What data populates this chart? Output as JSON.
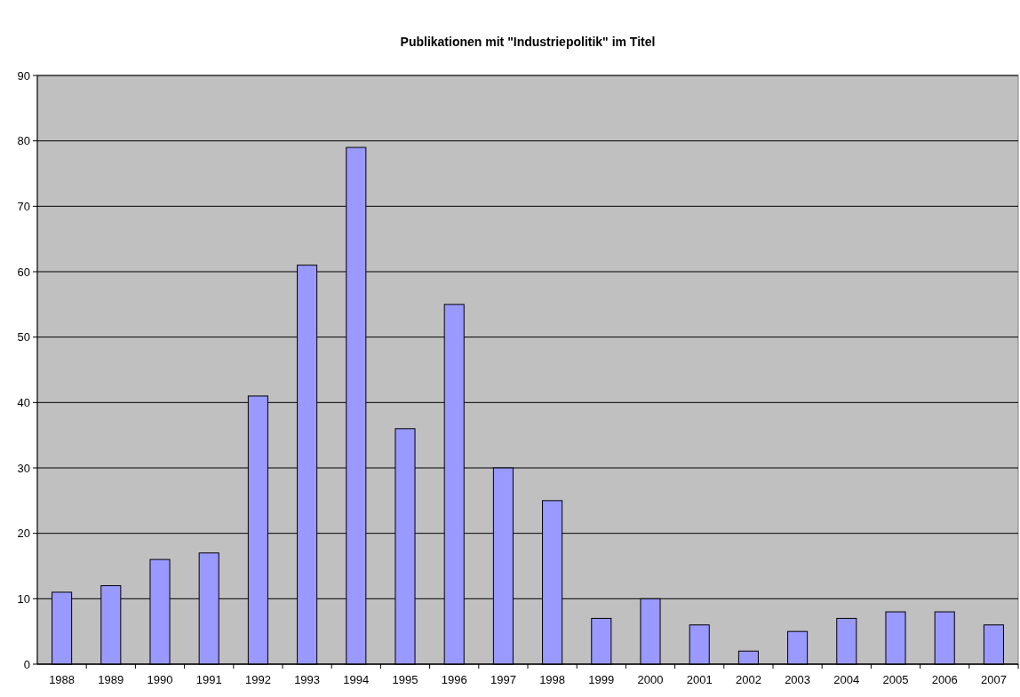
{
  "chart_data": {
    "type": "bar",
    "title": "Publikationen mit \"Industriepolitik\" im Titel",
    "categories": [
      "1988",
      "1989",
      "1990",
      "1991",
      "1992",
      "1993",
      "1994",
      "1995",
      "1996",
      "1997",
      "1998",
      "1999",
      "2000",
      "2001",
      "2002",
      "2003",
      "2004",
      "2005",
      "2006",
      "2007"
    ],
    "values": [
      11,
      12,
      16,
      17,
      41,
      61,
      79,
      36,
      55,
      30,
      25,
      7,
      10,
      6,
      2,
      5,
      7,
      8,
      8,
      6
    ],
    "color": "#9999ff",
    "ylim": [
      0,
      90
    ],
    "yticks": [
      0,
      10,
      20,
      30,
      40,
      50,
      60,
      70,
      80,
      90
    ],
    "grid": "y"
  }
}
